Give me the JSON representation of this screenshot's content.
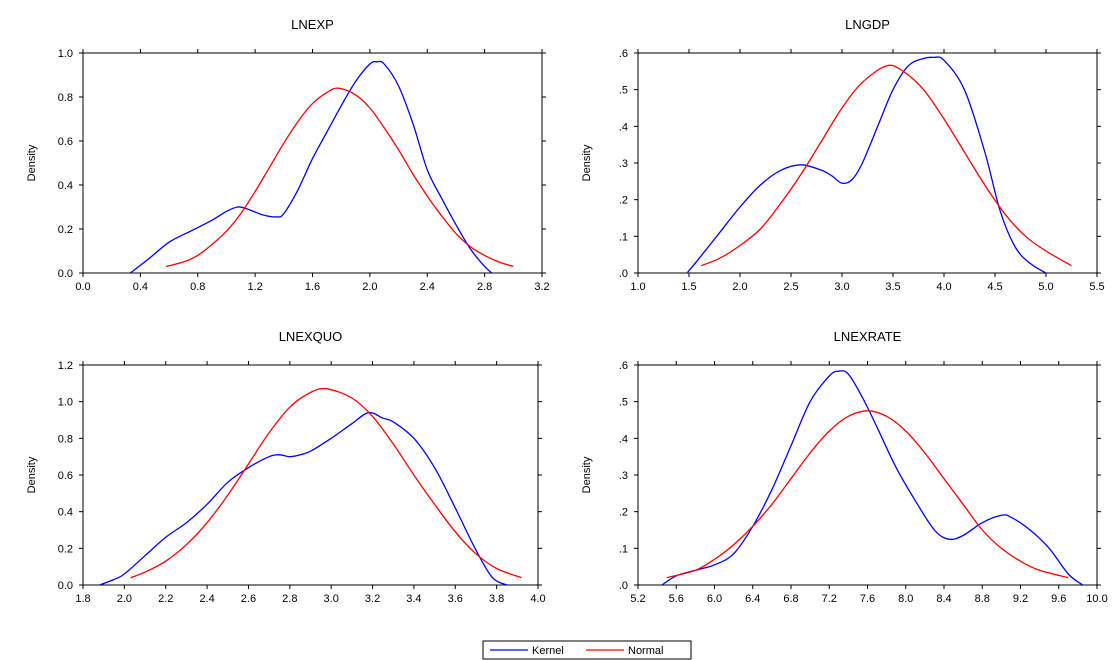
{
  "chart_data": [
    {
      "type": "line",
      "title": "LNEXP",
      "ylabel": "Density",
      "xlim": [
        0.0,
        3.2
      ],
      "ylim": [
        0.0,
        1.0
      ],
      "xticks": [
        "0.0",
        "0.4",
        "0.8",
        "1.2",
        "1.6",
        "2.0",
        "2.4",
        "2.8",
        "3.2"
      ],
      "yticks": [
        "0.0",
        "0.2",
        "0.4",
        "0.6",
        "0.8",
        "1.0"
      ],
      "series": [
        {
          "name": "Kernel",
          "color": "#0000ff",
          "x": [
            0.33,
            0.45,
            0.6,
            0.75,
            0.9,
            1.0,
            1.08,
            1.15,
            1.25,
            1.35,
            1.4,
            1.5,
            1.6,
            1.7,
            1.8,
            1.9,
            2.0,
            2.05,
            2.1,
            2.2,
            2.3,
            2.4,
            2.5,
            2.6,
            2.7,
            2.8,
            2.85
          ],
          "y": [
            0.0,
            0.06,
            0.14,
            0.19,
            0.24,
            0.28,
            0.3,
            0.29,
            0.265,
            0.255,
            0.27,
            0.38,
            0.52,
            0.64,
            0.76,
            0.87,
            0.95,
            0.96,
            0.95,
            0.85,
            0.68,
            0.47,
            0.34,
            0.22,
            0.11,
            0.03,
            0.0
          ]
        },
        {
          "name": "Normal",
          "color": "#ff0000",
          "x": [
            0.58,
            0.7,
            0.8,
            0.9,
            1.0,
            1.1,
            1.2,
            1.3,
            1.4,
            1.5,
            1.6,
            1.7,
            1.78,
            1.9,
            2.0,
            2.1,
            2.2,
            2.3,
            2.4,
            2.5,
            2.6,
            2.7,
            2.8,
            2.9,
            3.0
          ],
          "y": [
            0.03,
            0.05,
            0.08,
            0.13,
            0.19,
            0.27,
            0.37,
            0.48,
            0.59,
            0.69,
            0.77,
            0.82,
            0.84,
            0.81,
            0.75,
            0.66,
            0.56,
            0.45,
            0.35,
            0.26,
            0.18,
            0.12,
            0.08,
            0.05,
            0.03
          ]
        }
      ]
    },
    {
      "type": "line",
      "title": "LNGDP",
      "ylabel": "Density",
      "xlim": [
        1.0,
        5.5
      ],
      "ylim": [
        0.0,
        0.6
      ],
      "xticks": [
        "1.0",
        "1.5",
        "2.0",
        "2.5",
        "3.0",
        "3.5",
        "4.0",
        "4.5",
        "5.0",
        "5.5"
      ],
      "yticks": [
        ".0",
        ".1",
        ".2",
        ".3",
        ".4",
        ".5",
        ".6"
      ],
      "series": [
        {
          "name": "Kernel",
          "color": "#0000ff",
          "x": [
            1.48,
            1.6,
            1.8,
            2.0,
            2.2,
            2.4,
            2.6,
            2.8,
            2.9,
            3.0,
            3.1,
            3.2,
            3.35,
            3.5,
            3.65,
            3.8,
            3.9,
            4.0,
            4.2,
            4.4,
            4.55,
            4.7,
            4.85,
            5.0
          ],
          "y": [
            0.0,
            0.04,
            0.11,
            0.18,
            0.24,
            0.28,
            0.295,
            0.28,
            0.265,
            0.245,
            0.255,
            0.3,
            0.4,
            0.5,
            0.565,
            0.585,
            0.588,
            0.58,
            0.5,
            0.33,
            0.17,
            0.07,
            0.025,
            0.0
          ]
        },
        {
          "name": "Normal",
          "color": "#ff0000",
          "x": [
            1.62,
            1.8,
            2.0,
            2.2,
            2.4,
            2.6,
            2.8,
            3.0,
            3.2,
            3.44,
            3.6,
            3.8,
            4.0,
            4.2,
            4.4,
            4.6,
            4.8,
            5.0,
            5.25
          ],
          "y": [
            0.02,
            0.04,
            0.075,
            0.12,
            0.19,
            0.27,
            0.36,
            0.45,
            0.52,
            0.565,
            0.55,
            0.5,
            0.42,
            0.33,
            0.24,
            0.16,
            0.1,
            0.06,
            0.02
          ]
        }
      ]
    },
    {
      "type": "line",
      "title": "LNEXQUO",
      "ylabel": "Density",
      "xlim": [
        1.8,
        4.0
      ],
      "ylim": [
        0.0,
        1.2
      ],
      "xticks": [
        "1.8",
        "2.0",
        "2.2",
        "2.4",
        "2.6",
        "2.8",
        "3.0",
        "3.2",
        "3.4",
        "3.6",
        "3.8",
        "4.0"
      ],
      "yticks": [
        "0.0",
        "0.2",
        "0.4",
        "0.6",
        "0.8",
        "1.0",
        "1.2"
      ],
      "series": [
        {
          "name": "Kernel",
          "color": "#0000ff",
          "x": [
            1.88,
            1.95,
            2.0,
            2.1,
            2.2,
            2.3,
            2.4,
            2.5,
            2.6,
            2.7,
            2.75,
            2.8,
            2.85,
            2.9,
            3.0,
            3.1,
            3.18,
            3.25,
            3.3,
            3.4,
            3.5,
            3.6,
            3.7,
            3.78,
            3.85
          ],
          "y": [
            0.0,
            0.03,
            0.06,
            0.16,
            0.26,
            0.34,
            0.44,
            0.56,
            0.64,
            0.7,
            0.71,
            0.7,
            0.71,
            0.73,
            0.8,
            0.88,
            0.94,
            0.91,
            0.89,
            0.8,
            0.64,
            0.42,
            0.19,
            0.04,
            0.0
          ]
        },
        {
          "name": "Normal",
          "color": "#ff0000",
          "x": [
            2.03,
            2.1,
            2.2,
            2.3,
            2.4,
            2.5,
            2.6,
            2.7,
            2.8,
            2.9,
            2.98,
            3.1,
            3.2,
            3.3,
            3.4,
            3.5,
            3.6,
            3.7,
            3.8,
            3.92
          ],
          "y": [
            0.04,
            0.07,
            0.13,
            0.22,
            0.34,
            0.49,
            0.66,
            0.83,
            0.97,
            1.05,
            1.07,
            1.02,
            0.92,
            0.77,
            0.6,
            0.44,
            0.29,
            0.17,
            0.09,
            0.04
          ]
        }
      ]
    },
    {
      "type": "line",
      "title": "LNEXRATE",
      "ylabel": "Density",
      "xlim": [
        5.2,
        10.0
      ],
      "ylim": [
        0.0,
        0.6
      ],
      "xticks": [
        "5.2",
        "5.6",
        "6.0",
        "6.4",
        "6.8",
        "7.2",
        "7.6",
        "8.0",
        "8.4",
        "8.8",
        "9.2",
        "9.6",
        "10.0"
      ],
      "yticks": [
        ".0",
        ".1",
        ".2",
        ".3",
        ".4",
        ".5",
        ".6"
      ],
      "series": [
        {
          "name": "Kernel",
          "color": "#0000ff",
          "x": [
            5.45,
            5.6,
            5.8,
            6.0,
            6.2,
            6.4,
            6.6,
            6.8,
            7.0,
            7.2,
            7.3,
            7.4,
            7.55,
            7.7,
            7.9,
            8.1,
            8.3,
            8.45,
            8.6,
            8.8,
            9.0,
            9.1,
            9.3,
            9.5,
            9.7,
            9.85
          ],
          "y": [
            0.0,
            0.025,
            0.04,
            0.055,
            0.085,
            0.16,
            0.26,
            0.38,
            0.5,
            0.57,
            0.583,
            0.575,
            0.51,
            0.43,
            0.32,
            0.23,
            0.15,
            0.125,
            0.135,
            0.17,
            0.19,
            0.185,
            0.15,
            0.1,
            0.03,
            0.0
          ]
        },
        {
          "name": "Normal",
          "color": "#ff0000",
          "x": [
            5.5,
            5.8,
            6.0,
            6.2,
            6.4,
            6.6,
            6.8,
            7.0,
            7.2,
            7.4,
            7.6,
            7.8,
            8.0,
            8.2,
            8.4,
            8.6,
            8.8,
            9.0,
            9.2,
            9.4,
            9.7
          ],
          "y": [
            0.02,
            0.04,
            0.07,
            0.11,
            0.16,
            0.22,
            0.29,
            0.36,
            0.42,
            0.46,
            0.475,
            0.46,
            0.42,
            0.36,
            0.29,
            0.22,
            0.15,
            0.1,
            0.065,
            0.04,
            0.02
          ]
        }
      ]
    }
  ],
  "legend": {
    "items": [
      {
        "label": "Kernel",
        "color": "#0000ff"
      },
      {
        "label": "Normal",
        "color": "#ff0000"
      }
    ]
  }
}
